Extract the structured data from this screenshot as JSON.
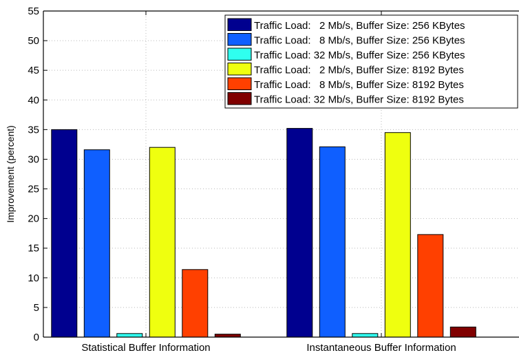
{
  "chart_data": {
    "type": "bar",
    "categories": [
      "Statistical Buffer Information",
      "Instantaneous Buffer Information"
    ],
    "ylabel": "Improvement (percent)",
    "ylim": [
      0,
      55
    ],
    "yticks": [
      0,
      5,
      10,
      15,
      20,
      25,
      30,
      35,
      40,
      45,
      50,
      55
    ],
    "grid": true,
    "legend_position": "top-right",
    "series": [
      {
        "name": "Traffic Load:   2 Mb/s, Buffer Size: 256 KBytes",
        "color": "#00008f",
        "values": [
          35.0,
          35.2
        ]
      },
      {
        "name": "Traffic Load:   8 Mb/s, Buffer Size: 256 KBytes",
        "color": "#0f5fff",
        "values": [
          31.6,
          32.1
        ]
      },
      {
        "name": "Traffic Load: 32 Mb/s, Buffer Size: 256 KBytes",
        "color": "#2fffef",
        "values": [
          0.6,
          0.6
        ]
      },
      {
        "name": "Traffic Load:   2 Mb/s, Buffer Size: 8192 Bytes",
        "color": "#efff0f",
        "values": [
          32.0,
          34.5
        ]
      },
      {
        "name": "Traffic Load:   8 Mb/s, Buffer Size: 8192 Bytes",
        "color": "#ff4000",
        "values": [
          11.4,
          17.3
        ]
      },
      {
        "name": "Traffic Load: 32 Mb/s, Buffer Size: 8192 Bytes",
        "color": "#800000",
        "values": [
          0.5,
          1.7
        ]
      }
    ]
  }
}
